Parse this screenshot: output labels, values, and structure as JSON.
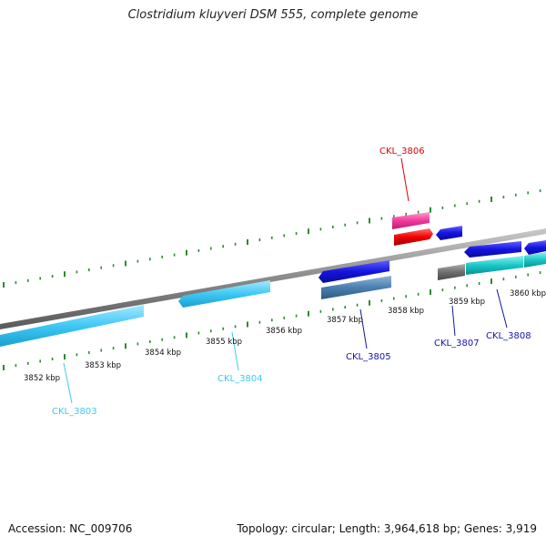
{
  "title": "Clostridium kluyveri DSM 555, complete genome",
  "footer": {
    "accession": "Accession: NC_009706",
    "summary": "Topology: circular; Length: 3,964,618 bp; Genes: 3,919"
  },
  "colors": {
    "backbone": "#8a8a8a",
    "tick": "#2e8b2e",
    "light_blue": "#3ec8f5",
    "dark_blue": "#1414e0",
    "steel_blue": "#4a7fb0",
    "pink": "#f0399c",
    "red": "#f00000",
    "gray": "#6e6e6e",
    "cyan": "#18c8c8"
  },
  "scale_labels": [
    "3852 kbp",
    "3853 kbp",
    "3854 kbp",
    "3855 kbp",
    "3856 kbp",
    "3857 kbp",
    "3858 kbp",
    "3859 kbp",
    "3860 kbp"
  ],
  "genes": [
    {
      "label": "CKL_3803",
      "color": "#3ec8f5"
    },
    {
      "label": "CKL_3804",
      "color": "#3ec8f5"
    },
    {
      "label": "CKL_3805",
      "color": "#1414a8"
    },
    {
      "label": "CKL_3806",
      "color": "#e00000"
    },
    {
      "label": "CKL_3807",
      "color": "#1414a8"
    },
    {
      "label": "CKL_3808",
      "color": "#1414a8"
    }
  ]
}
